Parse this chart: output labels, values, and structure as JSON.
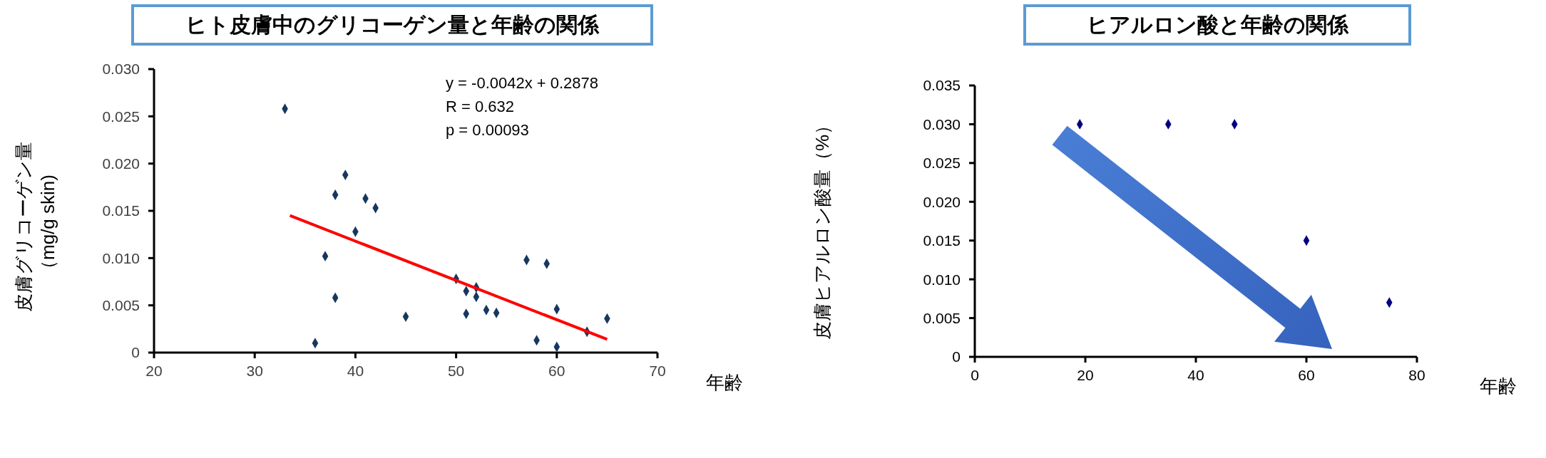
{
  "chart_data": [
    {
      "type": "scatter",
      "title": "ヒト皮膚中のグリコーゲン量と年齢の関係",
      "xlabel": "年齢",
      "ylabel": "皮膚グリコーゲン量（mg/g skin)",
      "marker": "diamond",
      "xlim": [
        20,
        70
      ],
      "xticks": [
        20,
        30,
        40,
        50,
        60,
        70
      ],
      "ylim": [
        0,
        0.03
      ],
      "yticks": [
        0,
        {
          "value": 0.005,
          "label": "0.005"
        },
        {
          "value": 0.01,
          "label": "0.010"
        },
        {
          "value": 0.015,
          "label": "0.015"
        },
        {
          "value": 0.02,
          "label": "0.020"
        },
        {
          "value": 0.025,
          "label": "0.025"
        },
        {
          "value": 0.03,
          "label": "0.030"
        }
      ],
      "annotations": [
        "y = -0.0042x + 0.2878",
        "R = 0.632",
        "p = 0.00093"
      ],
      "series": [
        {
          "color": "#17375e",
          "x": [
            33,
            39,
            38,
            41,
            42,
            40,
            37,
            38,
            36,
            45,
            50,
            51,
            52,
            52,
            51,
            53,
            54,
            57,
            59,
            60,
            58,
            60,
            63,
            65
          ],
          "values": [
            0.0258,
            0.0188,
            0.0167,
            0.0163,
            0.0153,
            0.0128,
            0.0102,
            0.0058,
            0.001,
            0.0038,
            0.0078,
            0.0065,
            0.0069,
            0.0059,
            0.0041,
            0.0045,
            0.0042,
            0.0098,
            0.0094,
            0.0046,
            0.0013,
            0.0006,
            0.0022,
            0.0036
          ]
        },
        {
          "type": "line",
          "marker": "none",
          "color": "#ff0000",
          "x": [
            33.5,
            65
          ],
          "values": [
            0.0145,
            0.0014
          ]
        }
      ]
    },
    {
      "type": "scatter",
      "title": "ヒアルロン酸と年齢の関係",
      "xlabel": "年齢",
      "ylabel": "皮膚ヒアルロン酸量（%）",
      "marker": "diamond",
      "xlim": [
        0,
        80
      ],
      "xticks": [
        0,
        20,
        40,
        60,
        80
      ],
      "ylim": [
        0,
        0.035
      ],
      "yticks": [
        0,
        {
          "value": 0.005,
          "label": "0.005"
        },
        {
          "value": 0.01,
          "label": "0.010"
        },
        {
          "value": 0.015,
          "label": "0.015"
        },
        {
          "value": 0.02,
          "label": "0.020"
        },
        {
          "value": 0.025,
          "label": "0.025"
        },
        {
          "value": 0.03,
          "label": "0.030"
        },
        {
          "value": 0.035,
          "label": "0.035"
        }
      ],
      "series": [
        {
          "color": "#000080",
          "x": [
            19,
            35,
            47,
            60,
            75
          ],
          "values": [
            0.03,
            0.03,
            0.03,
            0.015,
            0.007
          ]
        }
      ]
    }
  ]
}
